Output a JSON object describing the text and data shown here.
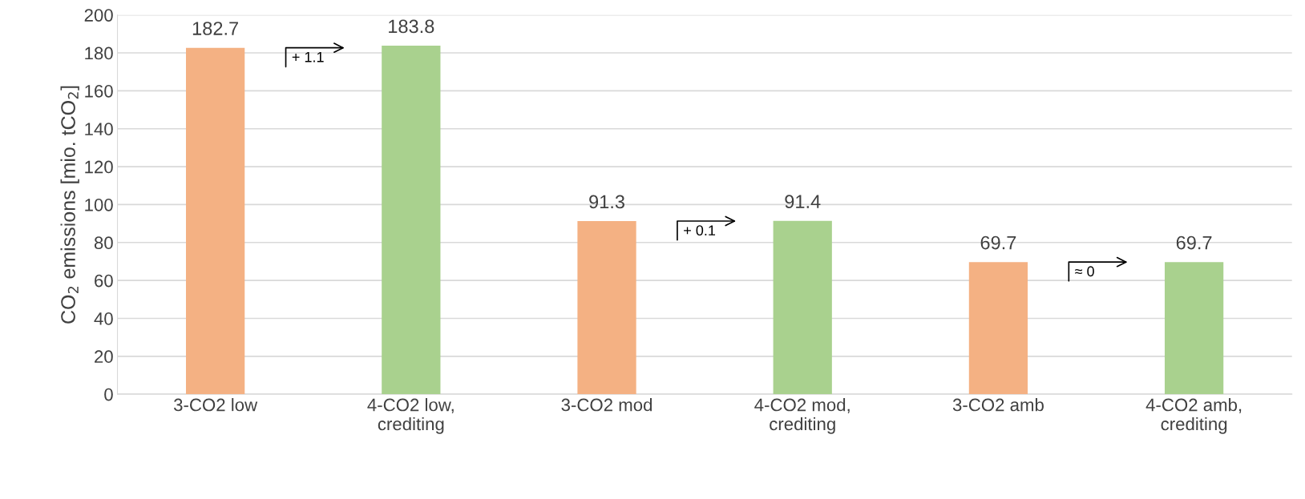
{
  "chart_data": {
    "type": "bar",
    "categories": [
      "3-CO2 low",
      "4-CO2 low,\ncrediting",
      "3-CO2 mod",
      "4-CO2 mod,\ncrediting",
      "3-CO2 amb",
      "4-CO2 amb,\ncrediting"
    ],
    "values": [
      182.7,
      183.8,
      91.3,
      91.4,
      69.7,
      69.7
    ],
    "colors": [
      "#f4b183",
      "#a9d18e",
      "#f4b183",
      "#a9d18e",
      "#f4b183",
      "#a9d18e"
    ],
    "data_labels": true,
    "ylabel": "CO$_{2}$ emissions [mio. tCO$_{2}$]",
    "ylim": [
      0,
      200
    ],
    "yticks": [
      0,
      20,
      40,
      60,
      80,
      100,
      120,
      140,
      160,
      180,
      200
    ],
    "grid": "y",
    "annotations": [
      "+ 1.1",
      "+ 0.1",
      "≈ 0"
    ]
  }
}
